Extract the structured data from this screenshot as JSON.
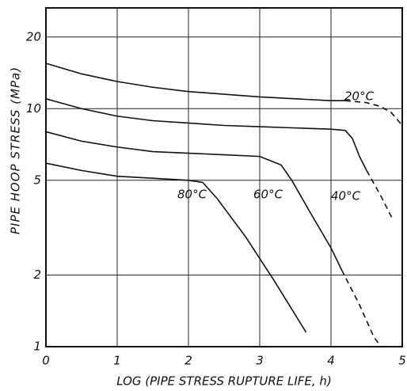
{
  "chart_data": {
    "type": "line",
    "xlabel": "LOG (PIPE STRESS RUPTURE LIFE, h)",
    "ylabel": "PIPE HOOP STRESS (MPa)",
    "xlim": [
      0,
      5
    ],
    "xticks": [
      0,
      1,
      2,
      3,
      4,
      5
    ],
    "ylim": [
      1,
      26.5
    ],
    "yticks": [
      1,
      2,
      5,
      10,
      20
    ],
    "log_y": true,
    "grid": true,
    "color": "#111111",
    "series": [
      {
        "name": "20°C",
        "x": [
          0,
          0.5,
          1,
          1.5,
          2,
          2.5,
          3,
          3.5,
          4,
          4.2
        ],
        "values": [
          15.5,
          14,
          13,
          12.3,
          11.8,
          11.5,
          11.2,
          11,
          10.8,
          10.8
        ],
        "extrapolated_x": [
          4.2,
          4.5,
          4.7,
          4.85,
          5
        ],
        "extrapolated_values": [
          10.8,
          10.6,
          10.2,
          9.6,
          8.5
        ]
      },
      {
        "name": "40°C",
        "x": [
          0,
          0.5,
          1,
          1.5,
          2,
          2.5,
          3,
          3.5,
          4,
          4.2,
          4.3,
          4.4,
          4.5
        ],
        "values": [
          11,
          10,
          9.3,
          8.9,
          8.7,
          8.5,
          8.4,
          8.3,
          8.2,
          8.1,
          7.5,
          6.3,
          5.5
        ],
        "extrapolated_x": [
          4.5,
          4.7,
          4.85
        ],
        "extrapolated_values": [
          5.5,
          4.3,
          3.5
        ]
      },
      {
        "name": "60°C",
        "x": [
          0,
          0.5,
          1,
          1.5,
          2,
          2.5,
          3,
          3.3,
          3.45,
          3.7,
          4,
          4.15
        ],
        "values": [
          8,
          7.3,
          6.9,
          6.6,
          6.5,
          6.4,
          6.3,
          5.8,
          5,
          3.7,
          2.6,
          2.1
        ],
        "extrapolated_x": [
          4.15,
          4.4,
          4.6,
          4.7
        ],
        "extrapolated_values": [
          2.1,
          1.5,
          1.1,
          1
        ]
      },
      {
        "name": "80°C",
        "x": [
          0,
          0.5,
          1,
          1.5,
          2,
          2.2,
          2.4,
          2.8,
          3.2,
          3.65
        ],
        "values": [
          5.9,
          5.5,
          5.2,
          5.1,
          5,
          4.9,
          4.2,
          2.9,
          1.9,
          1.15
        ]
      }
    ]
  }
}
